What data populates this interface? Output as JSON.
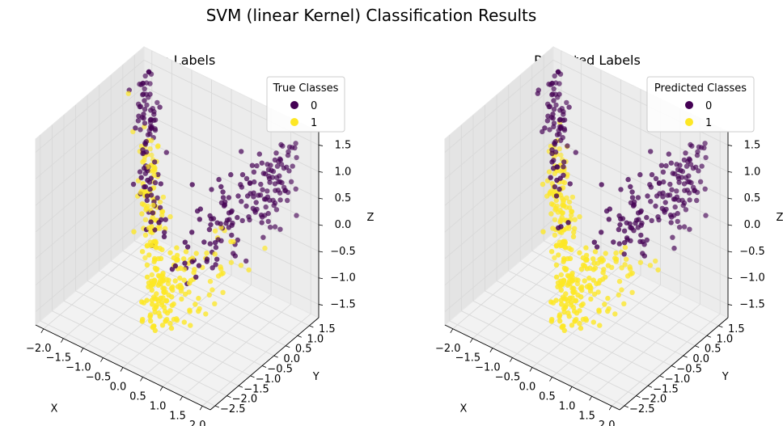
{
  "figure": {
    "title": "SVM (linear Kernel) Classification Results"
  },
  "colors": {
    "class_0": "#440154",
    "class_1": "#fde725",
    "pane_fill": "#f2f2f2",
    "grid": "#d9d9d9"
  },
  "chart_data": [
    {
      "type": "scatter",
      "projection": "3d",
      "title": "True Labels",
      "xlabel": "X",
      "ylabel": "Y",
      "zlabel": "Z",
      "xlim": [
        -2.2,
        2.2
      ],
      "ylim": [
        -2.7,
        1.9
      ],
      "zlim": [
        -1.75,
        1.75
      ],
      "xticks": [
        "−2.0",
        "−1.5",
        "−1.0",
        "−0.5",
        "0.0",
        "0.5",
        "1.0",
        "1.5",
        "2.0"
      ],
      "yticks": [
        "−2.5",
        "−2.0",
        "−1.5",
        "−1.0",
        "−0.5",
        "0.0",
        "0.5",
        "1.0",
        "1.5"
      ],
      "zticks": [
        "−1.5",
        "−1.0",
        "−0.5",
        "0.0",
        "0.5",
        "1.0",
        "1.5"
      ],
      "legend": {
        "title": "True Classes",
        "entries": [
          "0",
          "1"
        ],
        "placement": "upper right"
      },
      "grid": true,
      "series": [
        {
          "name": "0",
          "color": "#440154",
          "points": []
        },
        {
          "name": "1",
          "color": "#fde725",
          "points": []
        }
      ]
    },
    {
      "type": "scatter",
      "projection": "3d",
      "title": "Predicted Labels",
      "xlabel": "X",
      "ylabel": "Y",
      "zlabel": "Z",
      "xlim": [
        -2.2,
        2.2
      ],
      "ylim": [
        -2.7,
        1.9
      ],
      "zlim": [
        -1.75,
        1.75
      ],
      "xticks": [
        "−2.0",
        "−1.5",
        "−1.0",
        "−0.5",
        "0.0",
        "0.5",
        "1.0",
        "1.5",
        "2.0"
      ],
      "yticks": [
        "−2.5",
        "−2.0",
        "−1.5",
        "−1.0",
        "−0.5",
        "0.0",
        "0.5",
        "1.0",
        "1.5"
      ],
      "zticks": [
        "−1.5",
        "−1.0",
        "−0.5",
        "0.0",
        "0.5",
        "1.0",
        "1.5"
      ],
      "legend": {
        "title": "Predicted Classes",
        "entries": [
          "0",
          "1"
        ],
        "placement": "upper right"
      },
      "grid": true,
      "series": [
        {
          "name": "0",
          "color": "#440154",
          "points": []
        },
        {
          "name": "1",
          "color": "#fde725",
          "points": []
        }
      ]
    }
  ]
}
